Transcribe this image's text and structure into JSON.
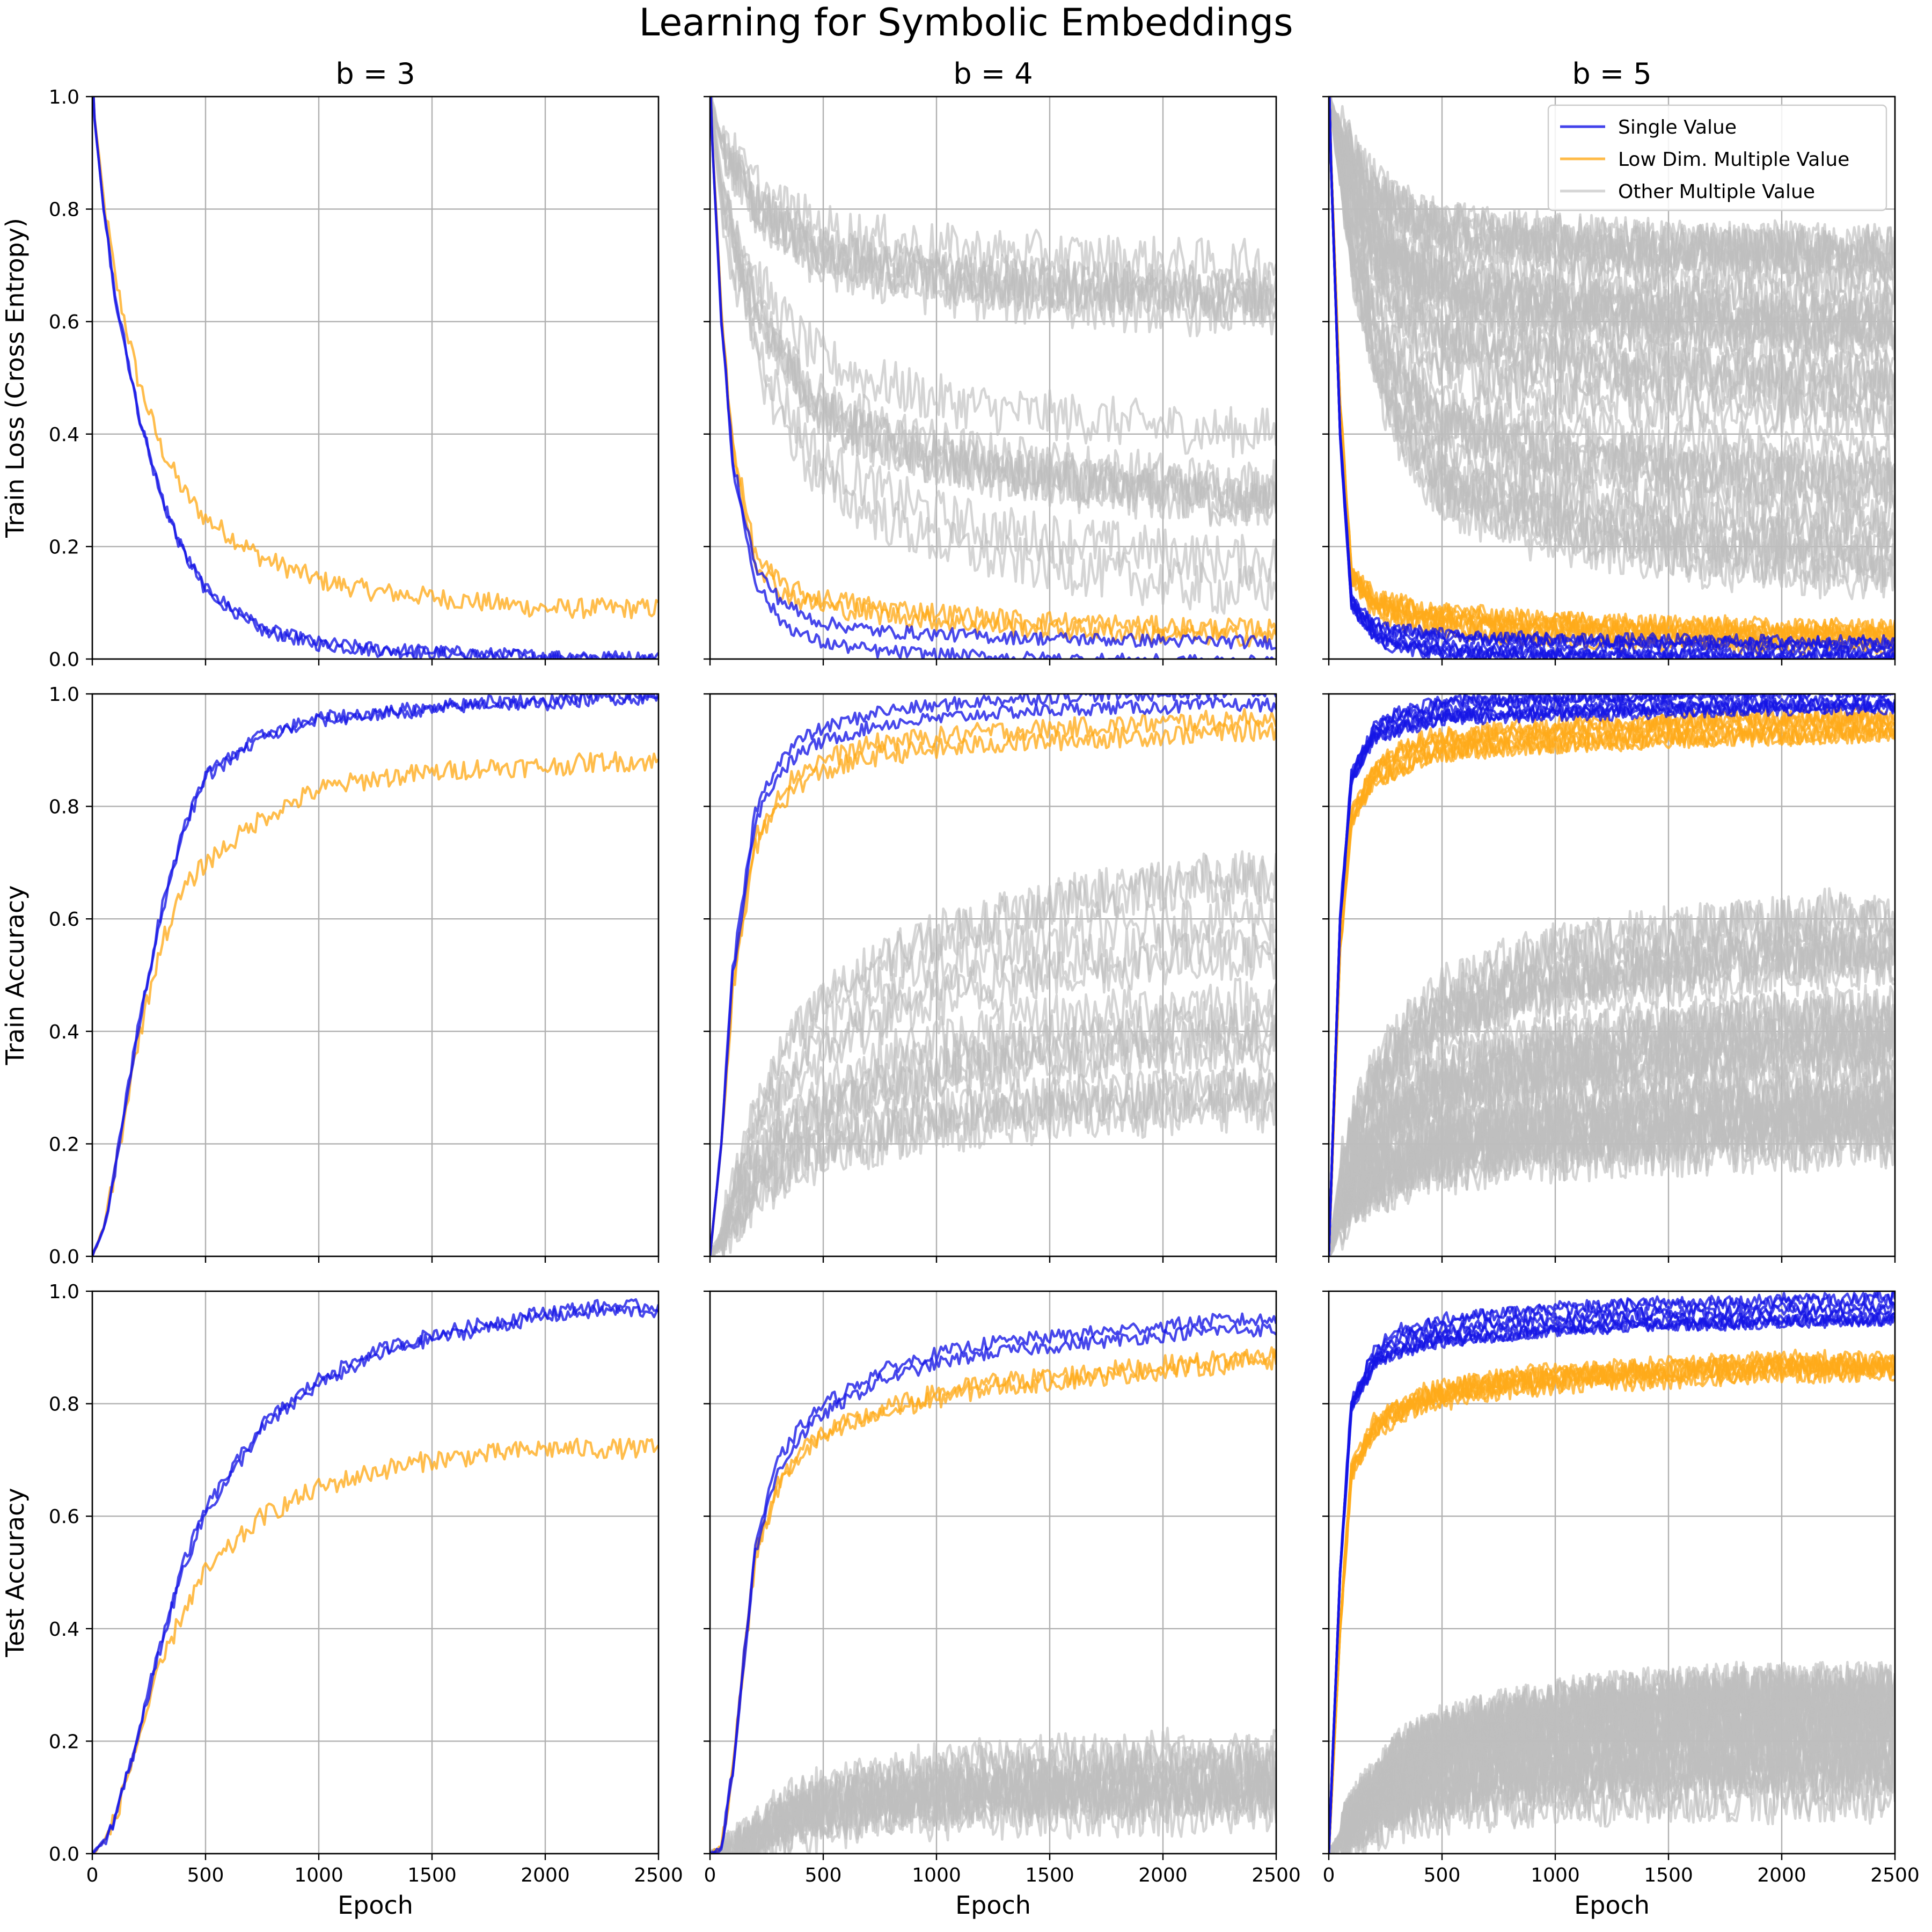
{
  "title": "Learning for Symbolic Embeddings",
  "col_titles": [
    "b = 3",
    "b = 4",
    "b = 5"
  ],
  "row_ylabels": [
    "Train Loss (Cross Entropy)",
    "Train Accuracy",
    "Test Accuracy"
  ],
  "xlabel": "Epoch",
  "colors": {
    "single": "#1414e6",
    "lowdim": "#ffaa1a",
    "other": "#bfbfbf"
  },
  "legend": {
    "position": "top-right",
    "entries": [
      {
        "label": "Single Value",
        "key": "single"
      },
      {
        "label": "Low Dim. Multiple Value",
        "key": "lowdim"
      },
      {
        "label": "Other Multiple Value",
        "key": "other"
      }
    ]
  },
  "chart_data": {
    "type": "line",
    "layout": "3x3 grid",
    "xlim": [
      0,
      2500
    ],
    "ylim": [
      0,
      1.0
    ],
    "xticks": [
      "0",
      "500",
      "1000",
      "1500",
      "2000",
      "2500"
    ],
    "yticks": [
      "0.0",
      "0.2",
      "0.4",
      "0.6",
      "0.8",
      "1.0"
    ],
    "x": [
      0,
      50,
      100,
      200,
      300,
      400,
      500,
      750,
      1000,
      1250,
      1500,
      1750,
      2000,
      2250,
      2500
    ],
    "panels": [
      {
        "row": 0,
        "col": 0,
        "metric": "Train Loss (Cross Entropy)",
        "b": 3,
        "series": [
          {
            "group": "single",
            "count": 2,
            "values": [
              1.0,
              0.8,
              0.65,
              0.45,
              0.3,
              0.2,
              0.13,
              0.06,
              0.035,
              0.025,
              0.02,
              0.015,
              0.012,
              0.01,
              0.008
            ]
          },
          {
            "group": "lowdim",
            "count": 1,
            "values": [
              1.0,
              0.82,
              0.68,
              0.5,
              0.38,
              0.3,
              0.25,
              0.18,
              0.14,
              0.12,
              0.11,
              0.1,
              0.09,
              0.09,
              0.09
            ]
          }
        ]
      },
      {
        "row": 0,
        "col": 1,
        "metric": "Train Loss (Cross Entropy)",
        "b": 4,
        "series": [
          {
            "group": "single",
            "count": 2,
            "values": [
              1.0,
              0.6,
              0.35,
              0.15,
              0.09,
              0.06,
              0.045,
              0.03,
              0.025,
              0.02,
              0.017,
              0.015,
              0.013,
              0.012,
              0.01
            ]
          },
          {
            "group": "lowdim",
            "count": 2,
            "values": [
              1.0,
              0.62,
              0.38,
              0.18,
              0.13,
              0.11,
              0.1,
              0.085,
              0.075,
              0.065,
              0.06,
              0.055,
              0.05,
              0.048,
              0.045
            ]
          },
          {
            "group": "other",
            "count": 14,
            "values": [
              1.0,
              0.86,
              0.79,
              0.68,
              0.61,
              0.56,
              0.52,
              0.48,
              0.45,
              0.43,
              0.42,
              0.41,
              0.4,
              0.39,
              0.39
            ]
          }
        ]
      },
      {
        "row": 0,
        "col": 2,
        "metric": "Train Loss (Cross Entropy)",
        "b": 5,
        "series": [
          {
            "group": "single",
            "count": 8,
            "values": [
              1.0,
              0.4,
              0.1,
              0.05,
              0.035,
              0.03,
              0.025,
              0.02,
              0.018,
              0.016,
              0.015,
              0.014,
              0.013,
              0.012,
              0.012
            ]
          },
          {
            "group": "lowdim",
            "count": 8,
            "values": [
              1.0,
              0.45,
              0.15,
              0.1,
              0.085,
              0.075,
              0.07,
              0.06,
              0.055,
              0.05,
              0.048,
              0.045,
              0.043,
              0.042,
              0.04
            ]
          },
          {
            "group": "other",
            "count": 40,
            "values": [
              1.0,
              0.9,
              0.8,
              0.68,
              0.6,
              0.56,
              0.53,
              0.5,
              0.48,
              0.47,
              0.46,
              0.45,
              0.45,
              0.44,
              0.44
            ]
          }
        ]
      },
      {
        "row": 1,
        "col": 0,
        "metric": "Train Accuracy",
        "b": 3,
        "series": [
          {
            "group": "single",
            "count": 2,
            "values": [
              0.0,
              0.05,
              0.15,
              0.4,
              0.6,
              0.75,
              0.85,
              0.92,
              0.95,
              0.96,
              0.97,
              0.98,
              0.98,
              0.99,
              0.99
            ]
          },
          {
            "group": "lowdim",
            "count": 1,
            "values": [
              0.0,
              0.05,
              0.15,
              0.38,
              0.55,
              0.65,
              0.7,
              0.78,
              0.83,
              0.85,
              0.86,
              0.87,
              0.87,
              0.88,
              0.88
            ]
          }
        ]
      },
      {
        "row": 1,
        "col": 1,
        "metric": "Train Accuracy",
        "b": 4,
        "series": [
          {
            "group": "single",
            "count": 2,
            "values": [
              0.0,
              0.2,
              0.5,
              0.78,
              0.86,
              0.9,
              0.92,
              0.95,
              0.96,
              0.97,
              0.975,
              0.98,
              0.98,
              0.985,
              0.985
            ]
          },
          {
            "group": "lowdim",
            "count": 2,
            "values": [
              0.0,
              0.2,
              0.48,
              0.74,
              0.82,
              0.86,
              0.88,
              0.91,
              0.92,
              0.93,
              0.935,
              0.94,
              0.945,
              0.95,
              0.955
            ]
          },
          {
            "group": "other",
            "count": 14,
            "values": [
              0.0,
              0.03,
              0.08,
              0.17,
              0.23,
              0.27,
              0.3,
              0.35,
              0.38,
              0.4,
              0.42,
              0.43,
              0.44,
              0.45,
              0.45
            ]
          }
        ]
      },
      {
        "row": 1,
        "col": 2,
        "metric": "Train Accuracy",
        "b": 5,
        "series": [
          {
            "group": "single",
            "count": 8,
            "values": [
              0.0,
              0.6,
              0.85,
              0.93,
              0.95,
              0.96,
              0.97,
              0.975,
              0.98,
              0.98,
              0.985,
              0.985,
              0.99,
              0.99,
              0.99
            ]
          },
          {
            "group": "lowdim",
            "count": 8,
            "values": [
              0.0,
              0.55,
              0.78,
              0.86,
              0.88,
              0.9,
              0.91,
              0.92,
              0.925,
              0.93,
              0.935,
              0.94,
              0.94,
              0.945,
              0.945
            ]
          },
          {
            "group": "other",
            "count": 40,
            "values": [
              0.0,
              0.1,
              0.16,
              0.22,
              0.26,
              0.29,
              0.31,
              0.34,
              0.36,
              0.37,
              0.38,
              0.39,
              0.395,
              0.4,
              0.4
            ]
          }
        ]
      },
      {
        "row": 2,
        "col": 0,
        "metric": "Test Accuracy",
        "b": 3,
        "series": [
          {
            "group": "single",
            "count": 2,
            "values": [
              0.0,
              0.02,
              0.06,
              0.2,
              0.36,
              0.5,
              0.6,
              0.75,
              0.83,
              0.88,
              0.91,
              0.93,
              0.95,
              0.96,
              0.96
            ]
          },
          {
            "group": "lowdim",
            "count": 1,
            "values": [
              0.0,
              0.02,
              0.06,
              0.2,
              0.33,
              0.43,
              0.5,
              0.6,
              0.65,
              0.68,
              0.7,
              0.71,
              0.72,
              0.72,
              0.72
            ]
          }
        ]
      },
      {
        "row": 2,
        "col": 1,
        "metric": "Test Accuracy",
        "b": 4,
        "series": [
          {
            "group": "single",
            "count": 2,
            "values": [
              0.0,
              0.01,
              0.15,
              0.55,
              0.7,
              0.76,
              0.8,
              0.86,
              0.89,
              0.91,
              0.92,
              0.93,
              0.94,
              0.95,
              0.95
            ]
          },
          {
            "group": "lowdim",
            "count": 2,
            "values": [
              0.0,
              0.01,
              0.15,
              0.52,
              0.64,
              0.7,
              0.73,
              0.77,
              0.8,
              0.82,
              0.83,
              0.84,
              0.85,
              0.86,
              0.87
            ]
          },
          {
            "group": "other",
            "count": 14,
            "values": [
              0.0,
              0.0,
              0.005,
              0.03,
              0.06,
              0.08,
              0.09,
              0.11,
              0.12,
              0.13,
              0.13,
              0.135,
              0.14,
              0.14,
              0.14
            ]
          }
        ]
      },
      {
        "row": 2,
        "col": 2,
        "metric": "Test Accuracy",
        "b": 5,
        "series": [
          {
            "group": "single",
            "count": 8,
            "values": [
              0.0,
              0.5,
              0.8,
              0.88,
              0.91,
              0.92,
              0.93,
              0.94,
              0.95,
              0.955,
              0.96,
              0.96,
              0.965,
              0.965,
              0.97
            ]
          },
          {
            "group": "lowdim",
            "count": 8,
            "values": [
              0.0,
              0.4,
              0.68,
              0.76,
              0.79,
              0.81,
              0.82,
              0.84,
              0.85,
              0.855,
              0.86,
              0.865,
              0.87,
              0.87,
              0.87
            ]
          },
          {
            "group": "other",
            "count": 40,
            "values": [
              0.0,
              0.02,
              0.05,
              0.09,
              0.12,
              0.14,
              0.15,
              0.17,
              0.18,
              0.19,
              0.195,
              0.2,
              0.2,
              0.2,
              0.2
            ]
          }
        ]
      }
    ]
  }
}
